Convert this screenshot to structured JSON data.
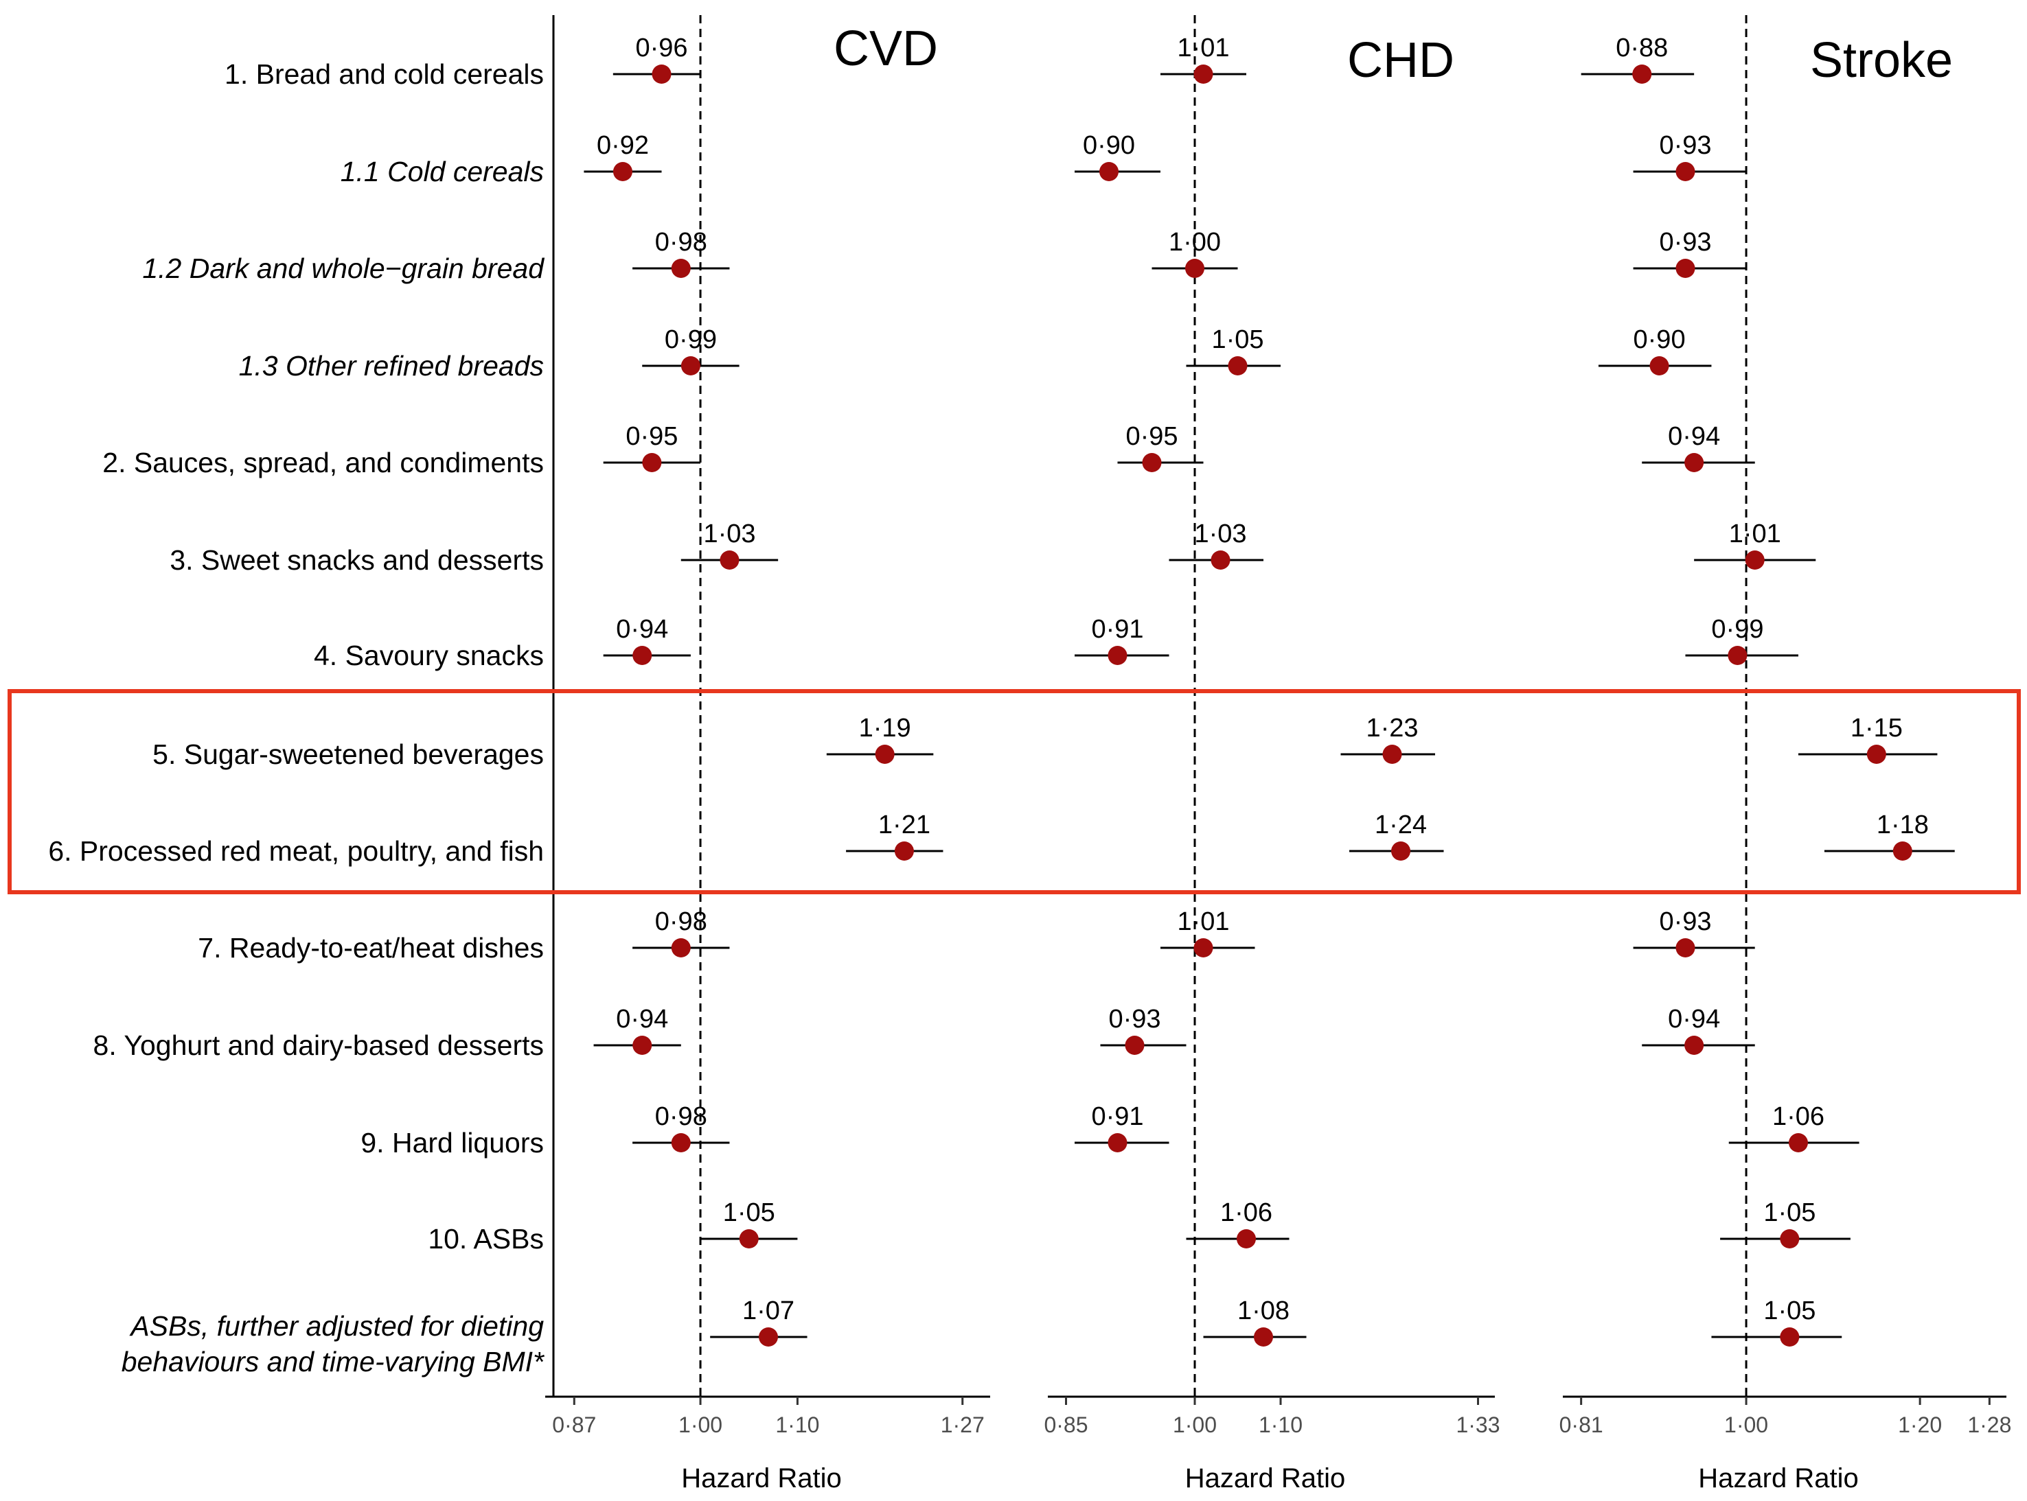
{
  "chart_data": {
    "type": "forest",
    "rows": [
      {
        "label": "1.  Bread and cold cereals",
        "italic": false
      },
      {
        "label": "1.1 Cold cereals",
        "italic": true
      },
      {
        "label": "1.2 Dark and whole−grain bread",
        "italic": true
      },
      {
        "label": "1.3 Other refined breads",
        "italic": true
      },
      {
        "label": "2. Sauces, spread, and condiments",
        "italic": false
      },
      {
        "label": "3. Sweet snacks and desserts",
        "italic": false
      },
      {
        "label": "4. Savoury snacks",
        "italic": false
      },
      {
        "label": "5. Sugar-sweetened beverages",
        "italic": false
      },
      {
        "label": "6. Processed red meat, poultry, and fish",
        "italic": false
      },
      {
        "label": "7. Ready-to-eat/heat dishes",
        "italic": false
      },
      {
        "label": "8. Yoghurt and dairy-based desserts",
        "italic": false
      },
      {
        "label": "9. Hard liquors",
        "italic": false
      },
      {
        "label": "10. ASBs",
        "italic": false
      },
      {
        "label": [
          "ASBs, further adjusted for dieting",
          "behaviours and time-varying BMI*"
        ],
        "italic": true
      }
    ],
    "highlight_rows": [
      7,
      8
    ],
    "reference_value": 1.0,
    "panels": [
      {
        "title": "CVD",
        "xlabel": "Hazard Ratio",
        "xlim": [
          0.85,
          1.29
        ],
        "ticks": [
          0.87,
          1.0,
          1.1,
          1.27
        ],
        "tick_labels": [
          "0·87",
          "1·00",
          "1·10",
          "1·27"
        ],
        "estimates": [
          {
            "hr": 0.96,
            "lo": 0.91,
            "hi": 1.0,
            "label": "0·96"
          },
          {
            "hr": 0.92,
            "lo": 0.88,
            "hi": 0.96,
            "label": "0·92"
          },
          {
            "hr": 0.98,
            "lo": 0.93,
            "hi": 1.03,
            "label": "0·98"
          },
          {
            "hr": 0.99,
            "lo": 0.94,
            "hi": 1.04,
            "label": "0·99"
          },
          {
            "hr": 0.95,
            "lo": 0.9,
            "hi": 1.0,
            "label": "0·95"
          },
          {
            "hr": 1.03,
            "lo": 0.98,
            "hi": 1.08,
            "label": "1·03"
          },
          {
            "hr": 0.94,
            "lo": 0.9,
            "hi": 0.99,
            "label": "0·94"
          },
          {
            "hr": 1.19,
            "lo": 1.13,
            "hi": 1.24,
            "label": "1·19"
          },
          {
            "hr": 1.21,
            "lo": 1.15,
            "hi": 1.25,
            "label": "1·21"
          },
          {
            "hr": 0.98,
            "lo": 0.93,
            "hi": 1.03,
            "label": "0·98"
          },
          {
            "hr": 0.94,
            "lo": 0.89,
            "hi": 0.98,
            "label": "0·94"
          },
          {
            "hr": 0.98,
            "lo": 0.93,
            "hi": 1.03,
            "label": "0·98"
          },
          {
            "hr": 1.05,
            "lo": 1.0,
            "hi": 1.1,
            "label": "1·05"
          },
          {
            "hr": 1.07,
            "lo": 1.01,
            "hi": 1.11,
            "label": "1·07"
          }
        ]
      },
      {
        "title": "CHD",
        "xlabel": "Hazard Ratio",
        "xlim": [
          0.84,
          1.34
        ],
        "ticks": [
          0.85,
          1.0,
          1.1,
          1.33
        ],
        "tick_labels": [
          "0·85",
          "1·00",
          "1·10",
          "1·33"
        ],
        "estimates": [
          {
            "hr": 1.01,
            "lo": 0.96,
            "hi": 1.06,
            "label": "1·01"
          },
          {
            "hr": 0.9,
            "lo": 0.86,
            "hi": 0.96,
            "label": "0·90"
          },
          {
            "hr": 1.0,
            "lo": 0.95,
            "hi": 1.05,
            "label": "1·00"
          },
          {
            "hr": 1.05,
            "lo": 0.99,
            "hi": 1.1,
            "label": "1·05"
          },
          {
            "hr": 0.95,
            "lo": 0.91,
            "hi": 1.01,
            "label": "0·95"
          },
          {
            "hr": 1.03,
            "lo": 0.97,
            "hi": 1.08,
            "label": "1·03"
          },
          {
            "hr": 0.91,
            "lo": 0.86,
            "hi": 0.97,
            "label": "0·91"
          },
          {
            "hr": 1.23,
            "lo": 1.17,
            "hi": 1.28,
            "label": "1·23"
          },
          {
            "hr": 1.24,
            "lo": 1.18,
            "hi": 1.29,
            "label": "1·24"
          },
          {
            "hr": 1.01,
            "lo": 0.96,
            "hi": 1.07,
            "label": "1·01"
          },
          {
            "hr": 0.93,
            "lo": 0.89,
            "hi": 0.99,
            "label": "0·93"
          },
          {
            "hr": 0.91,
            "lo": 0.86,
            "hi": 0.97,
            "label": "0·91"
          },
          {
            "hr": 1.06,
            "lo": 0.99,
            "hi": 1.11,
            "label": "1·06"
          },
          {
            "hr": 1.08,
            "lo": 1.01,
            "hi": 1.13,
            "label": "1·08"
          }
        ]
      },
      {
        "title": "Stroke",
        "xlabel": "Hazard Ratio",
        "xlim": [
          0.8,
          1.29
        ],
        "ticks": [
          0.81,
          1.0,
          1.2,
          1.28
        ],
        "tick_labels": [
          "0·81",
          "1·00",
          "1·20",
          "1·28"
        ],
        "estimates": [
          {
            "hr": 0.88,
            "lo": 0.81,
            "hi": 0.94,
            "label": "0·88"
          },
          {
            "hr": 0.93,
            "lo": 0.87,
            "hi": 1.0,
            "label": "0·93"
          },
          {
            "hr": 0.93,
            "lo": 0.87,
            "hi": 1.0,
            "label": "0·93"
          },
          {
            "hr": 0.9,
            "lo": 0.83,
            "hi": 0.96,
            "label": "0·90"
          },
          {
            "hr": 0.94,
            "lo": 0.88,
            "hi": 1.01,
            "label": "0·94"
          },
          {
            "hr": 1.01,
            "lo": 0.94,
            "hi": 1.08,
            "label": "1·01"
          },
          {
            "hr": 0.99,
            "lo": 0.93,
            "hi": 1.06,
            "label": "0·99"
          },
          {
            "hr": 1.15,
            "lo": 1.06,
            "hi": 1.22,
            "label": "1·15"
          },
          {
            "hr": 1.18,
            "lo": 1.09,
            "hi": 1.24,
            "label": "1·18"
          },
          {
            "hr": 0.93,
            "lo": 0.87,
            "hi": 1.01,
            "label": "0·93"
          },
          {
            "hr": 0.94,
            "lo": 0.88,
            "hi": 1.01,
            "label": "0·94"
          },
          {
            "hr": 1.06,
            "lo": 0.98,
            "hi": 1.13,
            "label": "1·06"
          },
          {
            "hr": 1.05,
            "lo": 0.97,
            "hi": 1.12,
            "label": "1·05"
          },
          {
            "hr": 1.05,
            "lo": 0.96,
            "hi": 1.11,
            "label": "1·05"
          }
        ]
      }
    ],
    "colors": {
      "point": "#a10d0d",
      "ci_line": "#000000",
      "reference_line": "#000000",
      "highlight_box": "#e8371e"
    }
  }
}
